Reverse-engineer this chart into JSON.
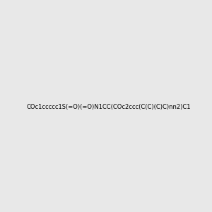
{
  "smiles": "COc1ccccc1S(=O)(=O)N1CC(COc2ccc(C(C)(C)C)nn2)C1",
  "image_size": 300,
  "background_color": "#e8e8e8",
  "title": ""
}
